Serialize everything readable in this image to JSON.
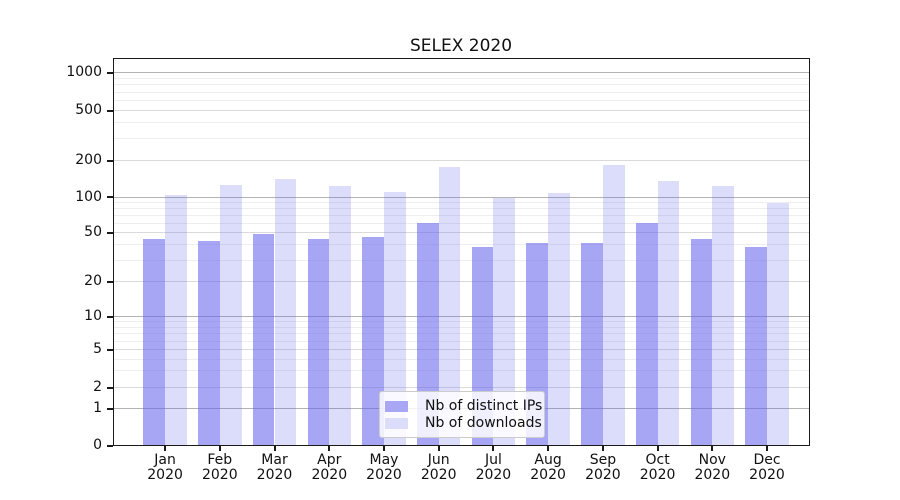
{
  "chart_data": {
    "type": "bar",
    "title": "SELEX 2020",
    "categories": [
      "Jan 2020",
      "Feb 2020",
      "Mar 2020",
      "Apr 2020",
      "May 2020",
      "Jun 2020",
      "Jul 2020",
      "Aug 2020",
      "Sep 2020",
      "Oct 2020",
      "Nov 2020",
      "Dec 2020"
    ],
    "series": [
      {
        "name": "Nb of distinct IPs",
        "values": [
          44,
          42,
          48,
          44,
          46,
          60,
          38,
          41,
          41,
          60,
          44,
          38
        ],
        "fill": "rgba(97,97,236,0.56)",
        "swatch": "#a7a7f4"
      },
      {
        "name": "Nb of downloads",
        "values": [
          103,
          124,
          140,
          122,
          110,
          176,
          98,
          108,
          182,
          135,
          122,
          88
        ],
        "fill": "rgba(97,97,236,0.22)",
        "swatch": "#dcdcfb"
      }
    ],
    "xlabel": "",
    "ylabel": "",
    "yscale": "symlog",
    "ylim": [
      0,
      1300
    ],
    "y_ticks": [
      0,
      1,
      2,
      5,
      10,
      20,
      50,
      100,
      200,
      500,
      1000
    ],
    "grid": "major+minor horizontal",
    "legend_position": "lower center"
  },
  "colors": {
    "grid_major": "#b3b3b3",
    "grid_mid": "#dadada",
    "grid_minor": "#eeeeee",
    "spine": "#1a1a1a"
  }
}
